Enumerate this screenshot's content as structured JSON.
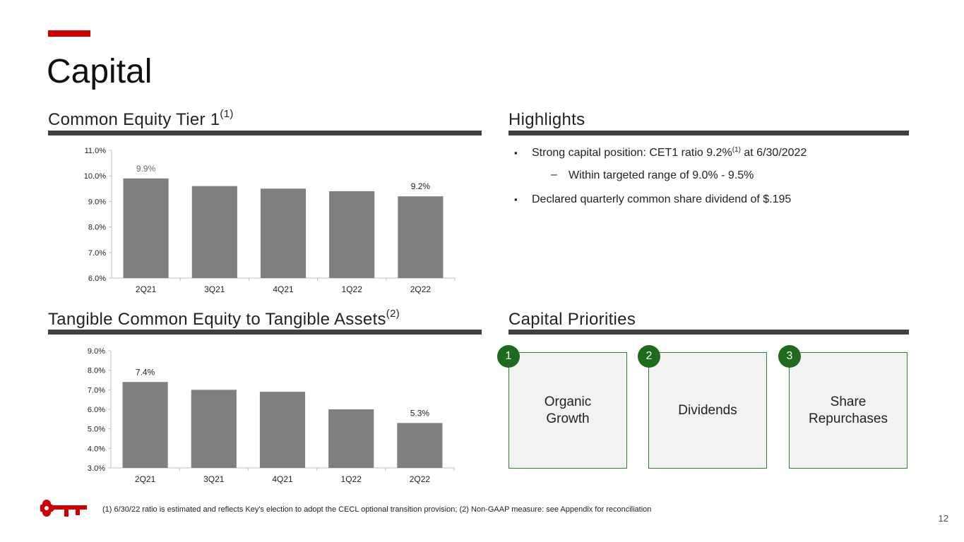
{
  "page": {
    "title": "Capital",
    "page_number": "12",
    "footnote": "(1) 6/30/22 ratio is estimated and reflects Key's election to adopt the CECL optional transition provision; (2) Non-GAAP measure: see Appendix for reconciliation"
  },
  "colors": {
    "accent": "#cc0000",
    "bar": "#7f7f7f",
    "priority_green": "#1e6b1e",
    "rule": "#404040"
  },
  "icons": [
    "key-logo-icon"
  ],
  "cet1": {
    "heading": "Common Equity Tier 1",
    "heading_sup": "(1)"
  },
  "tce": {
    "heading": "Tangible Common Equity to Tangible Assets",
    "heading_sup": "(2)"
  },
  "highlights": {
    "heading": "Highlights",
    "bullet1_text": "Strong capital position: CET1 ratio 9.2%",
    "bullet1_sup": "(1)",
    "bullet1_tail": " at 6/30/2022",
    "sub_bullet": "Within targeted range of 9.0% - 9.5%",
    "bullet2": "Declared quarterly common share dividend of $.195"
  },
  "priorities": {
    "heading": "Capital Priorities",
    "items": [
      {
        "number": "1",
        "label": "Organic\nGrowth"
      },
      {
        "number": "2",
        "label": "Dividends"
      },
      {
        "number": "3",
        "label": "Share\nRepurchases"
      }
    ]
  },
  "chart_data": [
    {
      "type": "bar",
      "categories": [
        "2Q21",
        "3Q21",
        "4Q21",
        "1Q22",
        "2Q22"
      ],
      "values": [
        9.9,
        9.6,
        9.5,
        9.4,
        9.2
      ],
      "data_labels": [
        "9.9%",
        null,
        null,
        null,
        "9.2%"
      ],
      "yticks": [
        "6.0%",
        "7.0%",
        "8.0%",
        "9.0%",
        "10.0%",
        "11.0%"
      ],
      "ylim": [
        6.0,
        11.0
      ],
      "grid": false,
      "title": "Common Equity Tier 1(1)"
    },
    {
      "type": "bar",
      "categories": [
        "2Q21",
        "3Q21",
        "4Q21",
        "1Q22",
        "2Q22"
      ],
      "values": [
        7.4,
        7.0,
        6.9,
        6.0,
        5.3
      ],
      "data_labels": [
        "7.4%",
        null,
        null,
        null,
        "5.3%"
      ],
      "yticks": [
        "3.0%",
        "4.0%",
        "5.0%",
        "6.0%",
        "7.0%",
        "8.0%",
        "9.0%"
      ],
      "ylim": [
        3.0,
        9.0
      ],
      "grid": false,
      "title": "Tangible Common Equity to Tangible Assets(2)"
    }
  ]
}
